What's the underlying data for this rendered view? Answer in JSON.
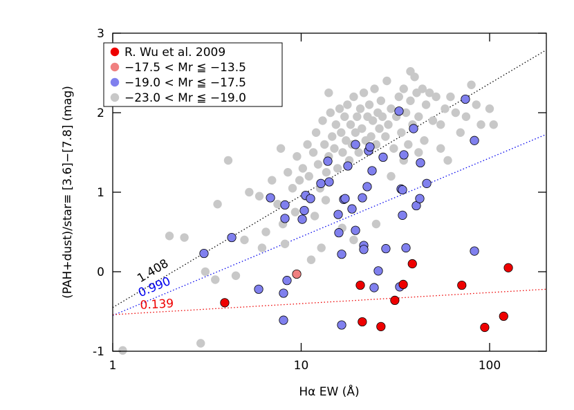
{
  "chart_data": {
    "type": "scatter",
    "x_label": "Hα EW (Å)",
    "y_label": "(PAH+dust)/star≡ [3.6]−[7.8] (mag)",
    "xscale": "log",
    "xlim": [
      1,
      200
    ],
    "ylim": [
      -1,
      3
    ],
    "xticks": [
      1,
      10,
      100
    ],
    "yticks": [
      -1,
      0,
      1,
      2,
      3
    ],
    "legend": "top-left",
    "series": [
      {
        "name": "R. Wu et al. 2009",
        "color": "#ee0000",
        "outline": true,
        "x": [
          3.93,
          20.6,
          21.1,
          26.5,
          31.4,
          34.8,
          38.9,
          71.2,
          94.2,
          118.7,
          125.7
        ],
        "values": [
          -0.39,
          -0.17,
          -0.63,
          -0.69,
          -0.36,
          -0.16,
          0.1,
          -0.17,
          -0.7,
          -0.56,
          0.05
        ]
      },
      {
        "name": "−17.5 < Mr ≦ −13.5",
        "color": "#f08080",
        "outline": true,
        "x": [
          9.47
        ],
        "values": [
          -0.03
        ]
      },
      {
        "name": "−19.0 < Mr ≦ −17.5",
        "color": "#8080ee",
        "outline": true,
        "x": [
          3.05,
          4.28,
          5.95,
          6.87,
          8.06,
          8.06,
          8.2,
          8.2,
          8.41,
          10.13,
          10.39,
          10.56,
          11.21,
          12.72,
          13.85,
          14.08,
          15.72,
          15.85,
          16.4,
          16.4,
          16.82,
          17.1,
          17.69,
          18.61,
          19.42,
          19.42,
          21.13,
          21.49,
          21.49,
          22.41,
          22.79,
          23.18,
          23.78,
          24.39,
          25.66,
          27.22,
          28.15,
          33.06,
          33.34,
          33.91,
          34.49,
          34.49,
          35.08,
          35.98,
          39.48,
          40.83,
          42.95,
          42.6,
          46.37,
          74.38,
          83.07,
          83.07
        ],
        "values": [
          0.23,
          0.43,
          -0.22,
          0.93,
          -0.27,
          -0.61,
          0.84,
          0.67,
          -0.11,
          0.66,
          0.77,
          0.96,
          0.92,
          1.11,
          1.39,
          1.13,
          0.72,
          0.49,
          0.22,
          -0.67,
          0.91,
          0.92,
          1.33,
          0.79,
          1.6,
          0.52,
          0.93,
          0.33,
          0.28,
          1.07,
          1.52,
          1.57,
          1.27,
          -0.2,
          0.01,
          1.44,
          0.29,
          2.02,
          -0.19,
          1.04,
          0.71,
          1.03,
          1.47,
          0.3,
          1.8,
          0.83,
          1.37,
          0.92,
          1.11,
          2.17,
          1.65,
          0.26
        ]
      },
      {
        "name": "−23.0 < Mr ≦ −19.0",
        "color": "#c8c8c8",
        "outline": false,
        "x": [
          1.13,
          2.93,
          2.0,
          3.1,
          2.4,
          3.5,
          4.1,
          5.3,
          6.0,
          6.5,
          7.0,
          7.5,
          7.8,
          8.2,
          8.5,
          9.0,
          9.3,
          9.5,
          9.8,
          10.2,
          10.5,
          10.8,
          11.0,
          11.3,
          11.6,
          12.0,
          12.3,
          12.6,
          13.0,
          13.3,
          13.6,
          14.0,
          14.3,
          14.6,
          15.0,
          15.3,
          15.6,
          16.0,
          16.3,
          16.6,
          17.0,
          17.3,
          17.6,
          18.0,
          18.3,
          18.6,
          19.0,
          19.4,
          19.8,
          20.2,
          20.6,
          21.0,
          21.5,
          22.0,
          22.5,
          23.0,
          23.5,
          24.0,
          24.5,
          25.0,
          25.5,
          26.0,
          26.5,
          27.0,
          28.0,
          28.5,
          29.0,
          30.0,
          31.0,
          32.0,
          33.0,
          34.0,
          35.0,
          36.0,
          37.0,
          38.0,
          39.0,
          40.0,
          41.0,
          42.0,
          44.0,
          46.0,
          48.0,
          50.0,
          52.0,
          55.0,
          58.0,
          62.0,
          66.0,
          70.0,
          75.0,
          80.0,
          85.0,
          90.0,
          100.0,
          105.0,
          8.0,
          11.8,
          13.5,
          16.5,
          19.0,
          25.0,
          30.0,
          35.0,
          42.0,
          45.0,
          55.0,
          60.0,
          5.0,
          4.5,
          3.6,
          6.2,
          14.0,
          12.8,
          38.0
        ],
        "values": [
          -0.99,
          -0.9,
          0.45,
          0.0,
          0.43,
          -0.1,
          1.4,
          1.0,
          0.95,
          0.5,
          1.15,
          0.85,
          1.55,
          0.35,
          1.25,
          1.05,
          0.75,
          1.45,
          1.15,
          1.3,
          0.95,
          1.6,
          1.2,
          0.15,
          1.5,
          1.75,
          1.35,
          1.05,
          1.9,
          1.6,
          1.25,
          1.45,
          2.0,
          1.7,
          1.55,
          1.85,
          1.3,
          2.05,
          1.75,
          1.5,
          1.95,
          1.65,
          2.1,
          1.4,
          1.85,
          1.6,
          2.2,
          1.75,
          1.95,
          1.5,
          2.05,
          1.8,
          2.25,
          1.65,
          1.95,
          2.1,
          1.7,
          1.9,
          2.3,
          1.6,
          2.0,
          1.8,
          2.15,
          1.95,
          1.7,
          2.4,
          1.85,
          2.05,
          1.55,
          1.95,
          2.2,
          1.75,
          2.3,
          2.0,
          1.6,
          2.15,
          1.85,
          2.45,
          2.25,
          1.95,
          2.3,
          2.1,
          2.25,
          1.9,
          2.2,
          1.85,
          2.05,
          2.2,
          2.0,
          1.75,
          1.95,
          2.35,
          2.1,
          1.85,
          2.05,
          1.85,
          0.6,
          0.7,
          0.9,
          0.55,
          0.4,
          0.6,
          1.2,
          1.4,
          1.5,
          1.65,
          1.55,
          1.4,
          0.4,
          -0.05,
          0.85,
          0.3,
          2.25,
          0.3,
          2.52
        ]
      }
    ],
    "fits": [
      {
        "slope": 1.408,
        "slope_label": "1.408",
        "intercept": -0.45,
        "color": "#000000"
      },
      {
        "slope": 0.99,
        "slope_label": "0.990",
        "intercept": -0.55,
        "color": "#0000ee"
      },
      {
        "slope": 0.139,
        "slope_label": "0.139",
        "intercept": -0.54,
        "color": "#ee0000"
      }
    ]
  }
}
